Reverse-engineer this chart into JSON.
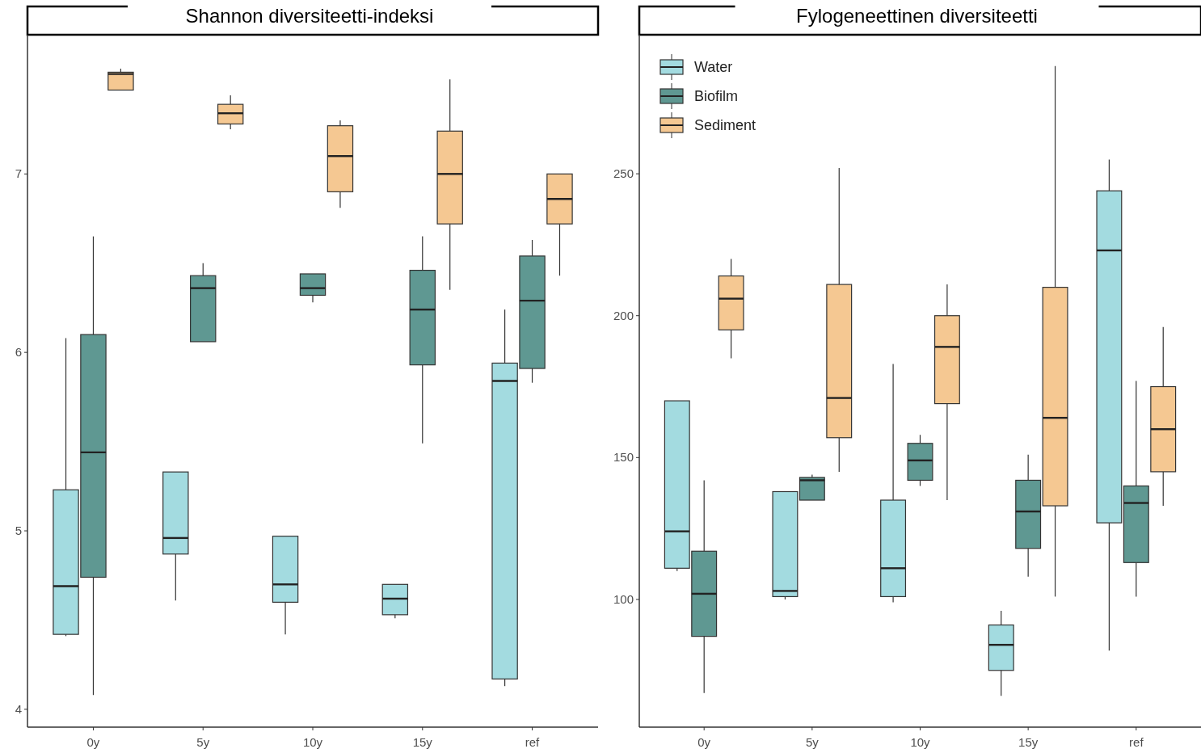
{
  "chart_data": [
    {
      "type": "box",
      "title": "Shannon diversiteetti-indeksi",
      "categories": [
        "0y",
        "5y",
        "10y",
        "15y",
        "ref"
      ],
      "ylim": [
        3.9,
        7.78
      ],
      "yticks": [
        4,
        5,
        6,
        7
      ],
      "series": [
        {
          "color": "#a3dbe0",
          "boxes": [
            {
              "low": 4.41,
              "q1": 4.42,
              "median": 4.69,
              "q3": 5.23,
              "high": 6.08
            },
            {
              "low": 4.61,
              "q1": 4.87,
              "median": 4.96,
              "q3": 5.33,
              "high": 5.33
            },
            {
              "low": 4.42,
              "q1": 4.6,
              "median": 4.7,
              "q3": 4.97,
              "high": 4.97
            },
            {
              "low": 4.51,
              "q1": 4.53,
              "median": 4.62,
              "q3": 4.7,
              "high": 4.7
            },
            {
              "low": 4.13,
              "q1": 4.17,
              "median": 5.84,
              "q3": 5.94,
              "high": 6.24
            }
          ]
        },
        {
          "color": "#5f9892",
          "boxes": [
            {
              "low": 4.08,
              "q1": 4.74,
              "median": 5.44,
              "q3": 6.1,
              "high": 6.65
            },
            {
              "low": 6.06,
              "q1": 6.06,
              "median": 6.36,
              "q3": 6.43,
              "high": 6.5
            },
            {
              "low": 6.28,
              "q1": 6.32,
              "median": 6.36,
              "q3": 6.44,
              "high": 6.44
            },
            {
              "low": 5.49,
              "q1": 5.93,
              "median": 6.24,
              "q3": 6.46,
              "high": 6.65
            },
            {
              "low": 5.83,
              "q1": 5.91,
              "median": 6.29,
              "q3": 6.54,
              "high": 6.63
            }
          ]
        },
        {
          "color": "#f5c892",
          "boxes": [
            {
              "low": 7.47,
              "q1": 7.47,
              "median": 7.56,
              "q3": 7.57,
              "high": 7.59
            },
            {
              "low": 7.25,
              "q1": 7.28,
              "median": 7.34,
              "q3": 7.39,
              "high": 7.44
            },
            {
              "low": 6.81,
              "q1": 6.9,
              "median": 7.1,
              "q3": 7.27,
              "high": 7.3
            },
            {
              "low": 6.35,
              "q1": 6.72,
              "median": 7.0,
              "q3": 7.24,
              "high": 7.53
            },
            {
              "low": 6.43,
              "q1": 6.72,
              "median": 6.86,
              "q3": 7.0,
              "high": 7.0
            }
          ]
        }
      ]
    },
    {
      "type": "box",
      "title": "Fylogeneettinen diversiteetti",
      "categories": [
        "0y",
        "5y",
        "10y",
        "15y",
        "ref"
      ],
      "ylim": [
        55,
        299
      ],
      "yticks": [
        100,
        150,
        200,
        250
      ],
      "legend": "top left",
      "series": [
        {
          "name": "Water",
          "color": "#a3dbe0",
          "boxes": [
            {
              "low": 110,
              "q1": 111,
              "median": 124,
              "q3": 170,
              "high": 170
            },
            {
              "low": 100,
              "q1": 101,
              "median": 103,
              "q3": 138,
              "high": 138
            },
            {
              "low": 99,
              "q1": 101,
              "median": 111,
              "q3": 135,
              "high": 183
            },
            {
              "low": 66,
              "q1": 75,
              "median": 84,
              "q3": 91,
              "high": 96
            },
            {
              "low": 82,
              "q1": 127,
              "median": 223,
              "q3": 244,
              "high": 255
            }
          ]
        },
        {
          "name": "Biofilm",
          "color": "#5f9892",
          "boxes": [
            {
              "low": 67,
              "q1": 87,
              "median": 102,
              "q3": 117,
              "high": 142
            },
            {
              "low": 135,
              "q1": 135,
              "median": 142,
              "q3": 143,
              "high": 144
            },
            {
              "low": 140,
              "q1": 142,
              "median": 149,
              "q3": 155,
              "high": 158
            },
            {
              "low": 108,
              "q1": 118,
              "median": 131,
              "q3": 142,
              "high": 151
            },
            {
              "low": 101,
              "q1": 113,
              "median": 134,
              "q3": 140,
              "high": 177
            }
          ]
        },
        {
          "name": "Sediment",
          "color": "#f5c892",
          "boxes": [
            {
              "low": 185,
              "q1": 195,
              "median": 206,
              "q3": 214,
              "high": 220
            },
            {
              "low": 145,
              "q1": 157,
              "median": 171,
              "q3": 211,
              "high": 252
            },
            {
              "low": 135,
              "q1": 169,
              "median": 189,
              "q3": 200,
              "high": 211
            },
            {
              "low": 101,
              "q1": 133,
              "median": 164,
              "q3": 210,
              "high": 288
            },
            {
              "low": 133,
              "q1": 145,
              "median": 160,
              "q3": 175,
              "high": 196
            }
          ]
        }
      ]
    }
  ]
}
